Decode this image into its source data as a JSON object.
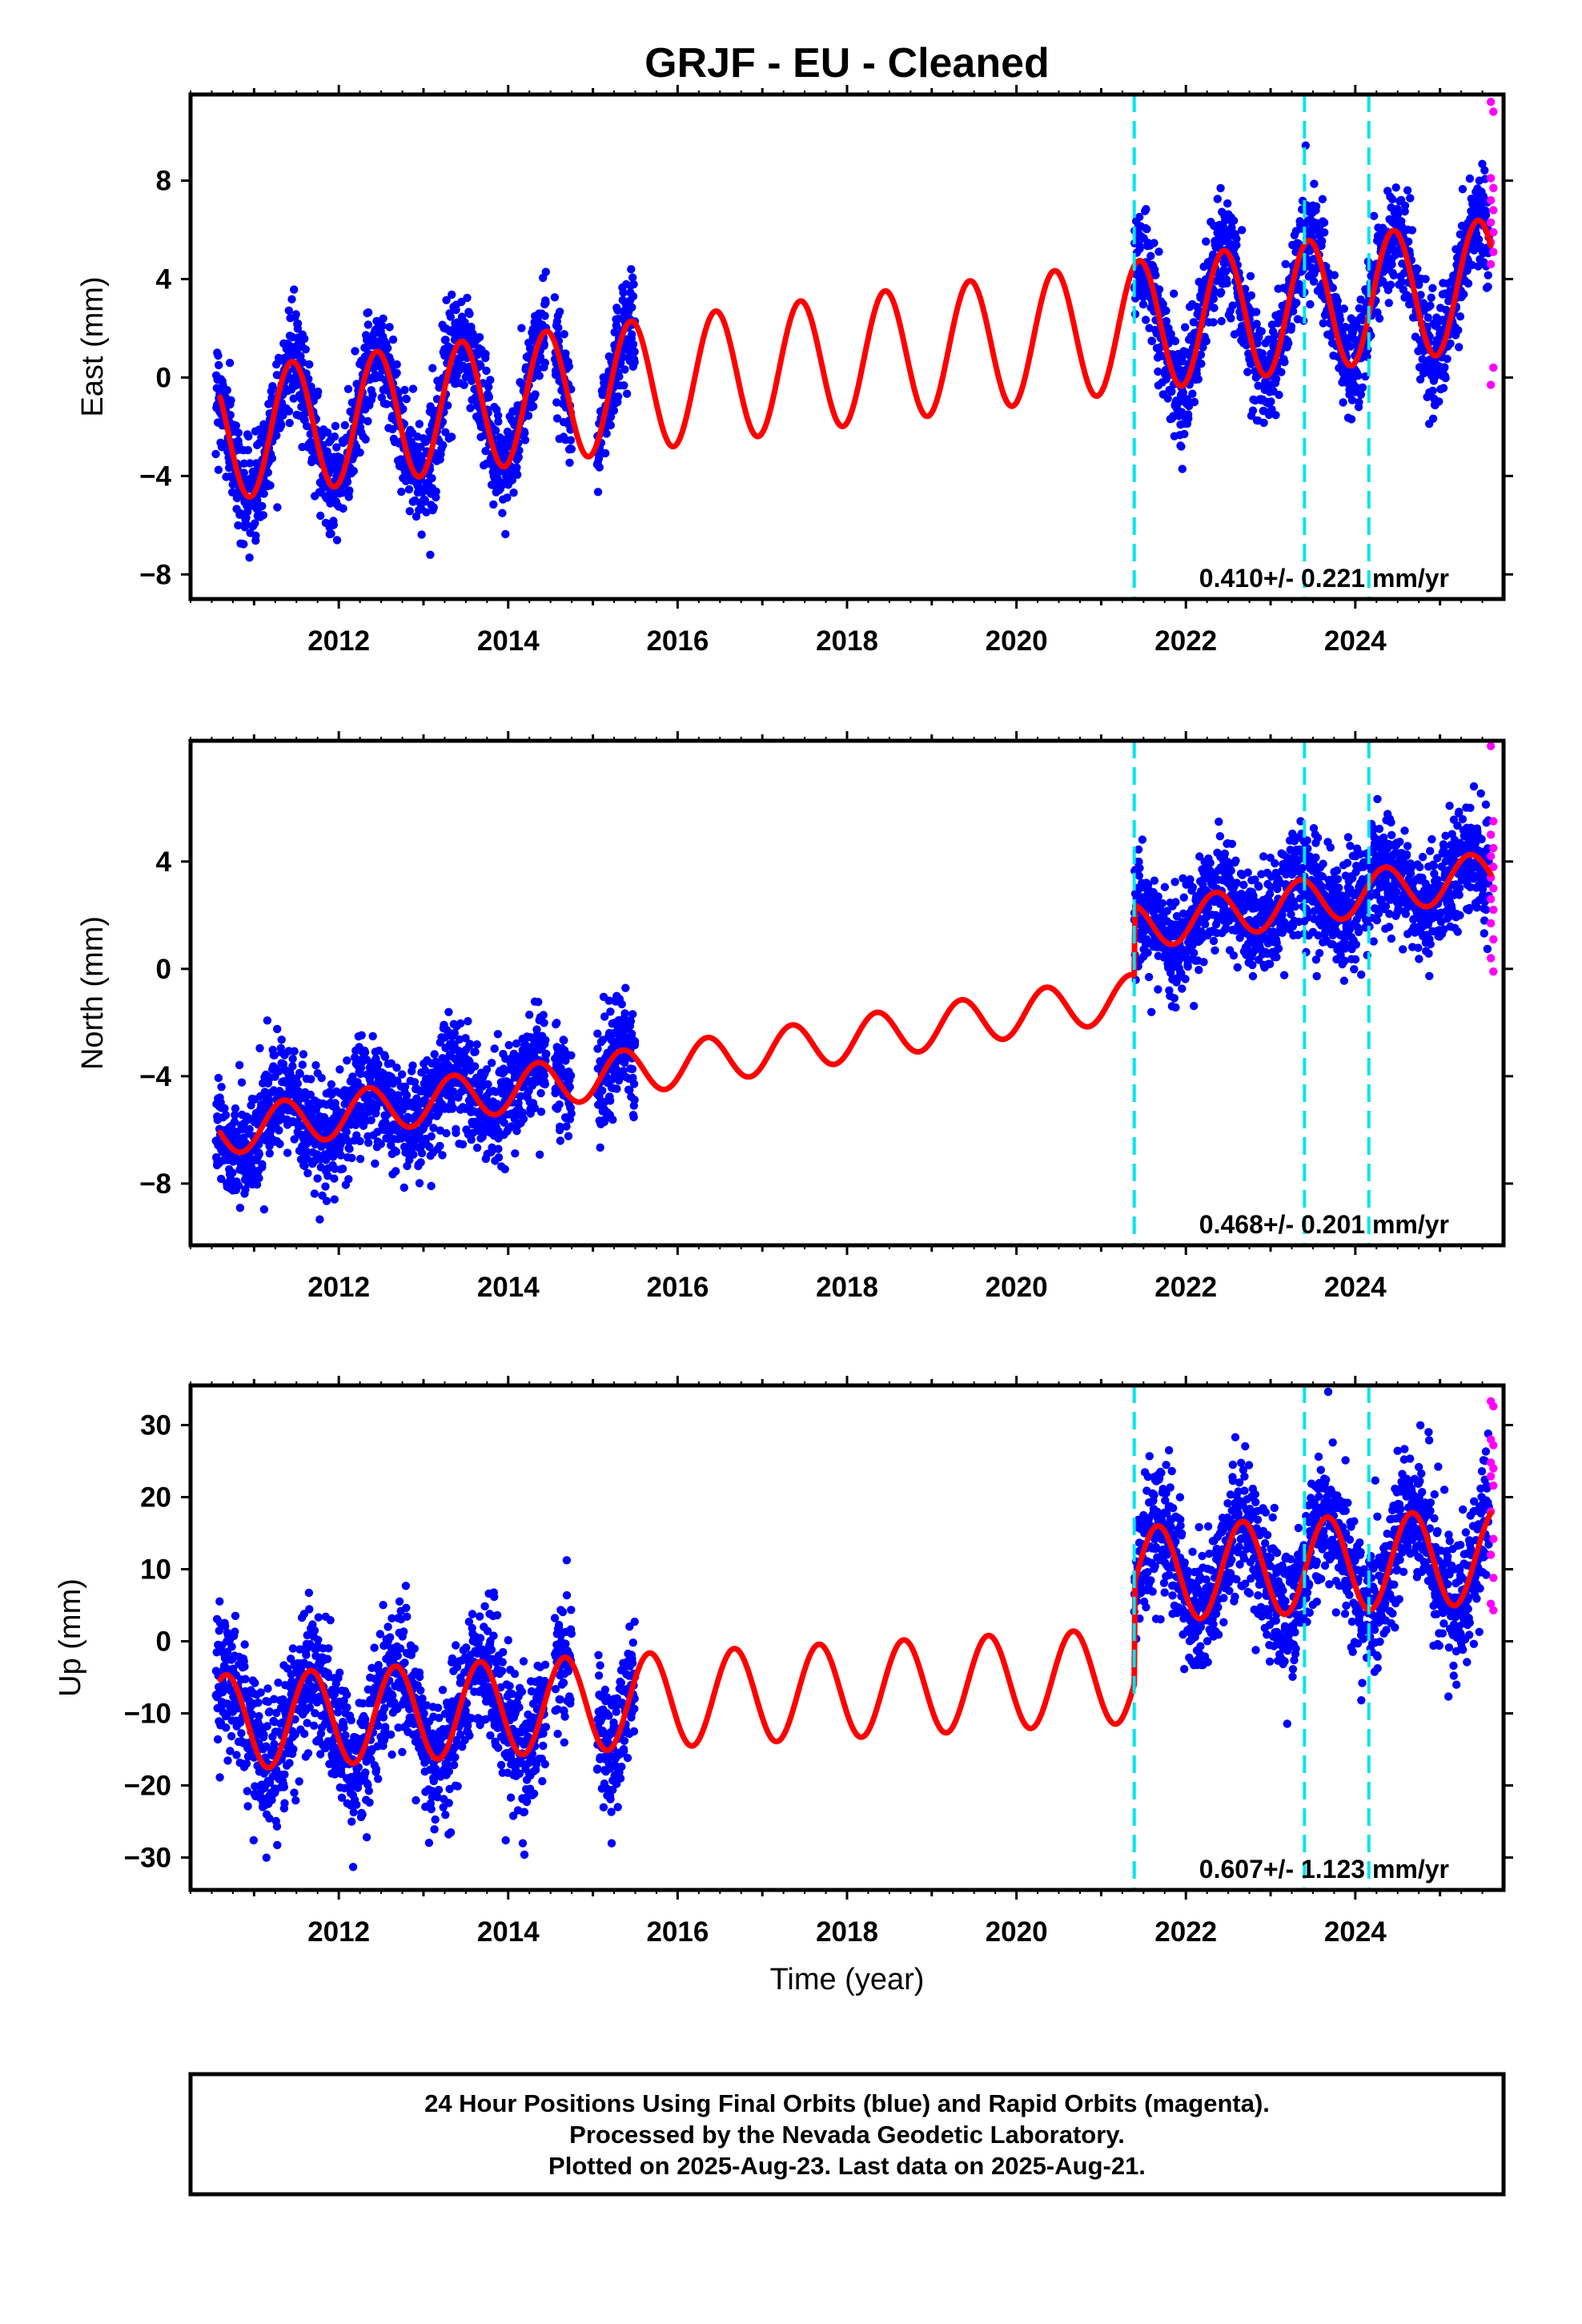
{
  "title": "GRJF  - EU - Cleaned",
  "xlabel": "Time (year)",
  "footer": {
    "line1": "24 Hour Positions Using Final Orbits (blue) and Rapid Orbits (magenta).",
    "line2": "Processed by the Nevada Geodetic Laboratory.",
    "line3": "Plotted on 2025-Aug-23. Last data on 2025-Aug-21."
  },
  "colors": {
    "final_points": "#0000ff",
    "rapid_points": "#ff00ff",
    "model": "#ff0000",
    "events": "#00e5ee"
  },
  "chart_data": [
    {
      "type": "scatter",
      "name": "east",
      "ylabel": "East (mm)",
      "rate_label": "0.410+/- 0.221 mm/yr",
      "xlim": [
        2010.25,
        2025.75
      ],
      "ylim": [
        -9,
        11.5
      ],
      "xticks": [
        2012,
        2014,
        2016,
        2018,
        2020,
        2022,
        2024
      ],
      "yticks": [
        -8,
        -4,
        0,
        4,
        8
      ],
      "event_lines": [
        2021.39,
        2023.4,
        2024.16
      ],
      "model": {
        "intercept": -2.35,
        "rate": 0.41,
        "amplitude": 2.65,
        "phase_year": 2011.45,
        "offsets": []
      },
      "final_segments": [
        [
          2010.55,
          2014.45
        ],
        [
          2014.55,
          2014.75
        ],
        [
          2015.05,
          2015.5
        ],
        [
          2021.39,
          2025.58
        ]
      ],
      "final_noise_mm": 1.05,
      "rapid_points_y": [
        11.2,
        10.8,
        8.1,
        7.7,
        7.2,
        6.8,
        6.3,
        5.9,
        5.5,
        5.1,
        4.6,
        0.4,
        -0.3
      ]
    },
    {
      "type": "scatter",
      "name": "north",
      "ylabel": "North (mm)",
      "rate_label": "0.468+/- 0.201 mm/yr",
      "xlim": [
        2010.25,
        2025.75
      ],
      "ylim": [
        -10.3,
        8.5
      ],
      "xticks": [
        2012,
        2014,
        2016,
        2018,
        2020,
        2022,
        2024
      ],
      "yticks": [
        -8,
        -4,
        0,
        4
      ],
      "event_lines": [
        2021.39,
        2023.4,
        2024.16
      ],
      "model": {
        "intercept": -6.1,
        "rate": 0.468,
        "amplitude": 0.85,
        "phase_year": 2011.35,
        "offsets": [
          [
            2021.39,
            2.6
          ]
        ]
      },
      "final_segments": [
        [
          2010.55,
          2014.45
        ],
        [
          2014.55,
          2014.75
        ],
        [
          2015.05,
          2015.5
        ],
        [
          2021.39,
          2025.58
        ]
      ],
      "final_noise_mm": 1.0,
      "rapid_points_y": [
        8.3,
        5.5,
        5.0,
        4.5,
        4.2,
        3.8,
        3.4,
        3.0,
        2.6,
        2.2,
        1.7,
        1.1,
        0.4,
        -0.1
      ]
    },
    {
      "type": "scatter",
      "name": "up",
      "ylabel": "Up (mm)",
      "rate_label": "0.607+/- 1.123 mm/yr",
      "xlim": [
        2010.25,
        2025.75
      ],
      "ylim": [
        -34.5,
        35.5
      ],
      "xticks": [
        2012,
        2014,
        2016,
        2018,
        2020,
        2022,
        2024
      ],
      "yticks": [
        -30,
        -20,
        -10,
        0,
        10,
        20,
        30
      ],
      "event_lines": [
        2021.39,
        2023.4,
        2024.16
      ],
      "model": {
        "intercept": -11.3,
        "rate": 0.607,
        "amplitude": 6.6,
        "phase_year": 2011.67,
        "offsets": [
          [
            2021.39,
            14.0
          ]
        ]
      },
      "final_segments": [
        [
          2010.55,
          2014.45
        ],
        [
          2014.55,
          2014.75
        ],
        [
          2015.05,
          2015.5
        ],
        [
          2021.39,
          2025.58
        ]
      ],
      "final_noise_mm": 4.6,
      "rapid_points_y": [
        33.3,
        32.6,
        28.0,
        27.2,
        24.8,
        24.0,
        22.9,
        21.6,
        18.0,
        14.2,
        12.0,
        8.8,
        5.2,
        4.3
      ]
    }
  ]
}
